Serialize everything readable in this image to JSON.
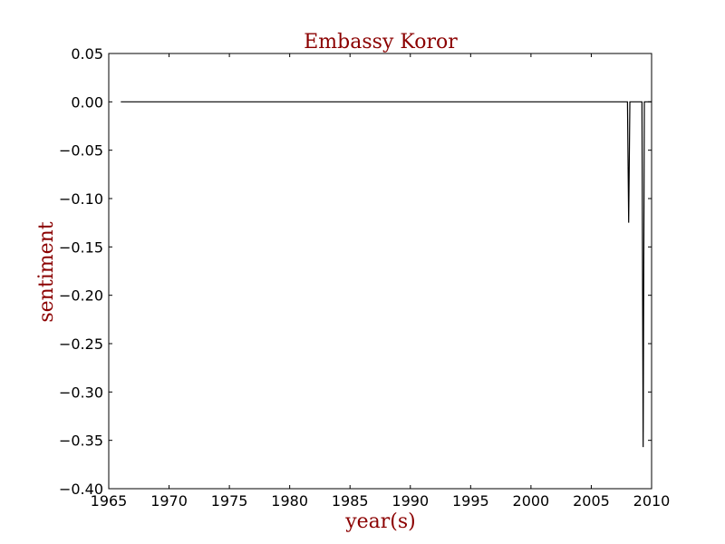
{
  "colors": {
    "label": "#8b0000",
    "line": "#000000",
    "axis": "#000000",
    "background": "#ffffff"
  },
  "chart_data": {
    "type": "line",
    "title": "Embassy Koror",
    "xlabel": "year(s)",
    "ylabel": "sentiment",
    "xlim": [
      1965,
      2010
    ],
    "ylim": [
      -0.4,
      0.05
    ],
    "xticks": [
      1965,
      1970,
      1975,
      1980,
      1985,
      1990,
      1995,
      2000,
      2005,
      2010
    ],
    "xtick_labels": [
      "1965",
      "1970",
      "1975",
      "1980",
      "1985",
      "1990",
      "1995",
      "2000",
      "2005",
      "2010"
    ],
    "yticks": [
      0.05,
      0.0,
      -0.05,
      -0.1,
      -0.15,
      -0.2,
      -0.25,
      -0.3,
      -0.35,
      -0.4
    ],
    "ytick_labels": [
      "0.05",
      "0.00",
      "−0.05",
      "−0.10",
      "−0.15",
      "−0.20",
      "−0.25",
      "−0.30",
      "−0.35",
      "−0.40"
    ],
    "grid": false,
    "series": [
      {
        "x": [
          1966.0,
          2008.0,
          2008.1,
          2008.2,
          2008.8,
          2009.2,
          2009.3,
          2009.4,
          2009.9,
          2010.0
        ],
        "y": [
          0.0,
          0.0,
          -0.125,
          0.0,
          0.0,
          0.0,
          -0.357,
          0.0,
          0.0,
          0.0
        ]
      }
    ]
  }
}
